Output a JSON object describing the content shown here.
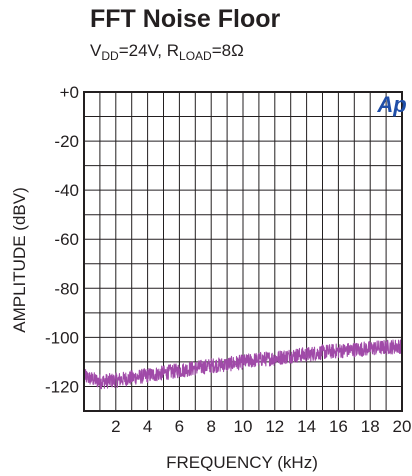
{
  "header": {
    "title": "FFT Noise Floor",
    "subtitle": {
      "vdd_main": "V",
      "vdd_sub": "DD",
      "vdd_value": "=24V, R",
      "rload_sub": "LOAD",
      "rload_value": "=8Ω"
    }
  },
  "logo": {
    "text": "Ap",
    "color": "#1f4ea8"
  },
  "chart_data": {
    "type": "line",
    "title": "FFT Noise Floor",
    "xlabel": "FREQUENCY (kHz)",
    "ylabel": "AMPLITUDE (dBV)",
    "xlim": [
      0,
      20
    ],
    "ylim": [
      -130,
      0
    ],
    "x_ticks": [
      2,
      4,
      6,
      8,
      10,
      12,
      14,
      16,
      18,
      20
    ],
    "x_tick_labels": [
      "2",
      "4",
      "6",
      "8",
      "10",
      "12",
      "14",
      "16",
      "18",
      "20"
    ],
    "y_ticks": [
      0,
      -20,
      -40,
      -60,
      -80,
      -100,
      -120
    ],
    "y_tick_labels": [
      "+0",
      "-20",
      "-40",
      "-60",
      "-80",
      "-100",
      "-120"
    ],
    "grid": true,
    "series": [
      {
        "color": "#a04aa8",
        "x": [
          0.05,
          1,
          2,
          3,
          4,
          5,
          6,
          7,
          8,
          9,
          10,
          11,
          12,
          13,
          14,
          15,
          16,
          17,
          18,
          19,
          20
        ],
        "y": [
          -116,
          -118,
          -117.5,
          -116.5,
          -115.5,
          -114.5,
          -113.5,
          -112.5,
          -111.5,
          -111,
          -110,
          -109,
          -108.5,
          -107.5,
          -107,
          -106,
          -105.5,
          -105,
          -104.5,
          -104,
          -103.5
        ],
        "noise_band_db": 3
      }
    ]
  }
}
